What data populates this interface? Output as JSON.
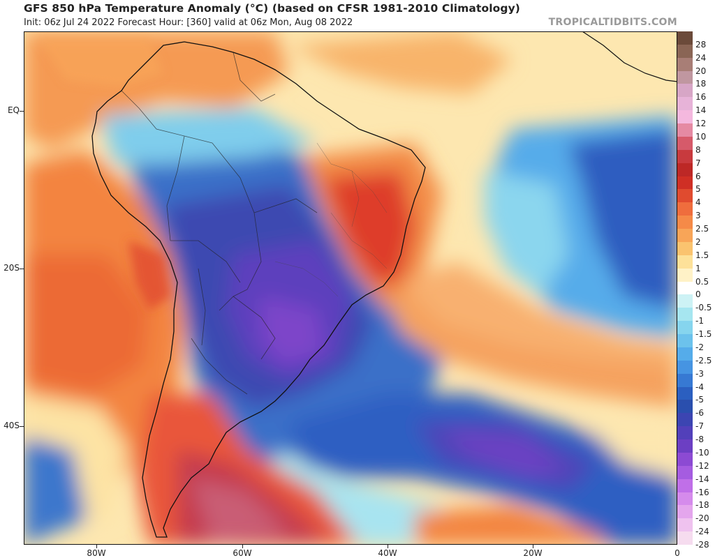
{
  "header": {
    "title": "GFS 850 hPa Temperature Anomaly (°C) (based on CFSR 1981-2010 Climatology)",
    "subtitle": "Init: 06z Jul 24 2022   Forecast Hour: [360]   valid at 06z Mon, Aug 08 2022",
    "brand": "TROPICALTIDBITS.COM"
  },
  "axes": {
    "y_labels": [
      "EQ",
      "20S",
      "40S"
    ],
    "x_labels": [
      "80W",
      "60W",
      "40W",
      "20W",
      "0"
    ]
  },
  "colorbar": {
    "labels": [
      "28",
      "24",
      "20",
      "18",
      "16",
      "14",
      "12",
      "10",
      "8",
      "7",
      "6",
      "5",
      "4",
      "3",
      "2.5",
      "2",
      "1.5",
      "1",
      "0.5",
      "0",
      "-0.5",
      "-1",
      "-1.5",
      "-2",
      "-2.5",
      "-3",
      "-4",
      "-5",
      "-6",
      "-7",
      "-8",
      "-10",
      "-12",
      "-14",
      "-16",
      "-18",
      "-20",
      "-24",
      "-28"
    ],
    "colors": [
      "#6b4a3a",
      "#8a6555",
      "#a87e76",
      "#c097a0",
      "#d7a6c6",
      "#e7b3d8",
      "#f4b8de",
      "#e58aa3",
      "#d65a6a",
      "#c83a3e",
      "#bd2826",
      "#cf2f25",
      "#e04b2f",
      "#ef6d3d",
      "#f58a48",
      "#f8a558",
      "#fac36f",
      "#fde199",
      "#fff2c7",
      "#ffffff",
      "#cdf2f5",
      "#a6e6f0",
      "#86d5ee",
      "#6cc2ec",
      "#55acea",
      "#4694e2",
      "#3779d3",
      "#2b5fc0",
      "#2a4fae",
      "#3c45b2",
      "#5240ba",
      "#6c3fc3",
      "#8c4ad3",
      "#a55ce0",
      "#c06fe8",
      "#d58bec",
      "#e4a6ed",
      "#efc2ef",
      "#f6dcef"
    ]
  }
}
